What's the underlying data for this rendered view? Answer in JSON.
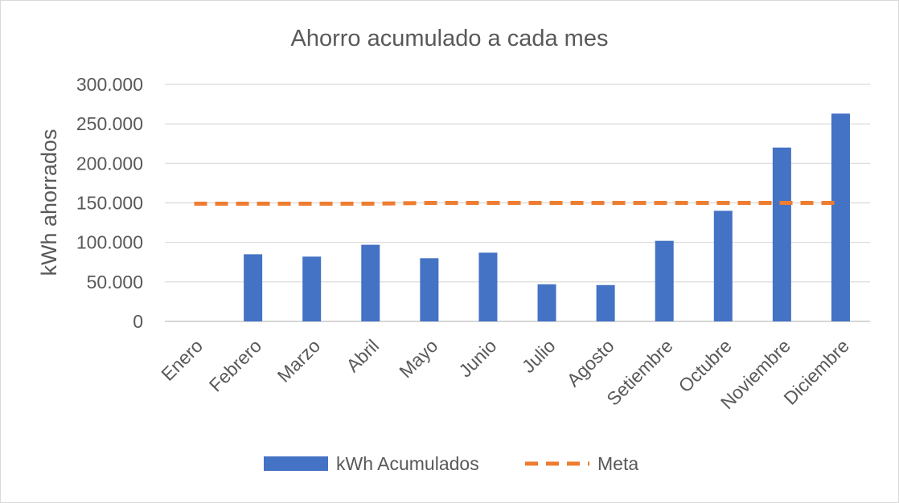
{
  "chart_data": {
    "type": "bar",
    "title": "Ahorro acumulado a cada mes",
    "xlabel": "",
    "ylabel": "kWh ahorrados",
    "categories": [
      "Enero",
      "Febrero",
      "Marzo",
      "Abril",
      "Mayo",
      "Junio",
      "Julio",
      "Agosto",
      "Setiembre",
      "Octubre",
      "Noviembre",
      "Diciembre"
    ],
    "series": [
      {
        "name": "kWh Acumulados",
        "type": "bar",
        "color": "#4472C4",
        "values": [
          0,
          85000,
          82000,
          97000,
          80000,
          87000,
          47000,
          46000,
          102000,
          140000,
          220000,
          263000
        ]
      },
      {
        "name": "Meta",
        "type": "line",
        "style": "dashed",
        "color": "#ED7D31",
        "values": [
          149000,
          149000,
          149000,
          149000,
          150000,
          150000,
          150000,
          150000,
          150000,
          150000,
          150000,
          150000
        ]
      }
    ],
    "ylim": [
      0,
      300000
    ],
    "yticks": [
      0,
      50000,
      100000,
      150000,
      200000,
      250000,
      300000
    ],
    "ytick_labels": [
      "0",
      "50.000",
      "100.000",
      "150.000",
      "200.000",
      "250.000",
      "300.000"
    ],
    "grid": true,
    "legend": "bottom"
  }
}
